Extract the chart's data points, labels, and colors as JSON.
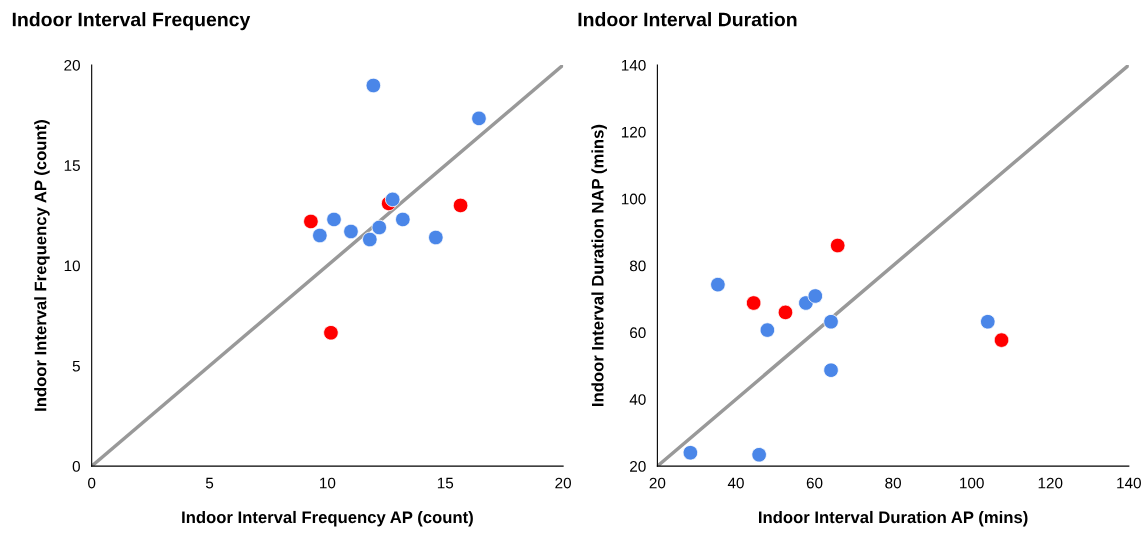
{
  "chart_data": [
    {
      "type": "scatter",
      "title": "Indoor Interval Frequency",
      "xlabel": "Indoor Interval Frequency AP (count)",
      "ylabel": "Indoor Interval Frequency AP (count)",
      "xlim": [
        0,
        20
      ],
      "ylim": [
        0,
        20
      ],
      "xticks": [
        0,
        5,
        10,
        15,
        20
      ],
      "yticks": [
        0,
        5,
        10,
        15,
        20
      ],
      "grid": false,
      "marker": "circle",
      "series": [
        {
          "type": "line",
          "marker": "none",
          "color": "#999999",
          "x": [
            0,
            20
          ],
          "values": [
            0,
            20
          ]
        },
        {
          "color": "#4a86e8",
          "x": [
            11.95,
            16.43,
            12.77,
            9.68,
            10.28,
            11.0,
            11.8,
            12.2,
            13.2,
            14.6
          ],
          "values": [
            18.98,
            17.34,
            13.3,
            11.5,
            12.3,
            11.7,
            11.3,
            11.9,
            12.3,
            11.4
          ]
        },
        {
          "color": "#ff0000",
          "x": [
            9.3,
            12.6,
            15.65,
            10.15
          ],
          "values": [
            12.2,
            13.1,
            13.0,
            6.65
          ]
        }
      ]
    },
    {
      "type": "scatter",
      "title": "Indoor Interval Duration",
      "xlabel": "Indoor Interval Duration AP (mins)",
      "ylabel": "Indoor Interval Duration NAP (mins)",
      "xlim": [
        20,
        140
      ],
      "ylim": [
        20,
        140
      ],
      "xticks": [
        20,
        40,
        60,
        80,
        100,
        120,
        140
      ],
      "yticks": [
        20,
        40,
        60,
        80,
        100,
        120,
        140
      ],
      "grid": false,
      "marker": "circle",
      "series": [
        {
          "type": "line",
          "marker": "none",
          "color": "#999999",
          "x": [
            20,
            140
          ],
          "values": [
            20,
            140
          ]
        },
        {
          "color": "#4a86e8",
          "x": [
            35.4,
            48.0,
            57.8,
            60.2,
            64.2,
            64.2,
            104.1,
            28.4,
            45.9
          ],
          "values": [
            74.3,
            60.7,
            68.8,
            70.9,
            63.2,
            48.7,
            63.2,
            24.0,
            23.4
          ]
        },
        {
          "color": "#ff0000",
          "x": [
            65.9,
            44.5,
            52.6,
            107.6
          ],
          "values": [
            86.0,
            68.8,
            66.0,
            57.7
          ]
        }
      ]
    }
  ]
}
